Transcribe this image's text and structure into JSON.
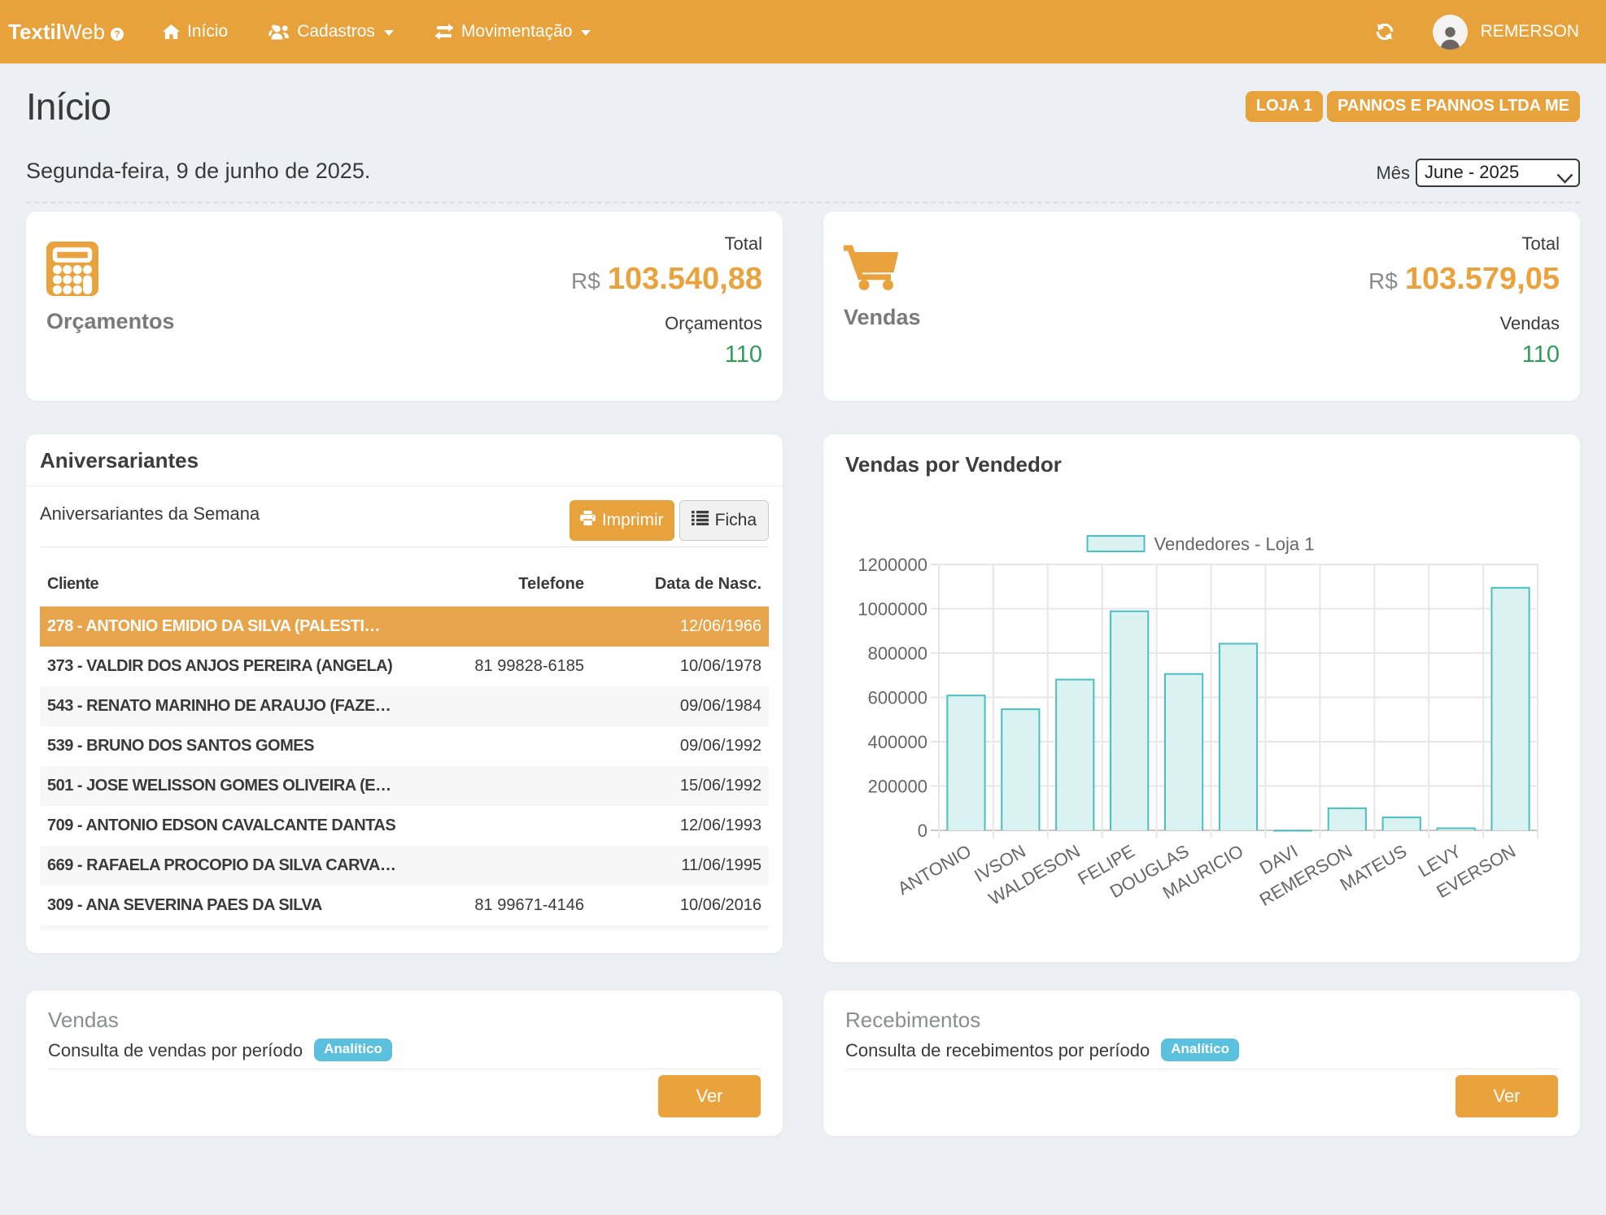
{
  "navbar": {
    "brand_bold": "Textil",
    "brand_light": "Web",
    "items": [
      {
        "label": "Início",
        "icon": "home-icon",
        "has_caret": false
      },
      {
        "label": "Cadastros",
        "icon": "users-icon",
        "has_caret": true
      },
      {
        "label": "Movimentação",
        "icon": "exchange-icon",
        "has_caret": true
      }
    ],
    "user": "REMERSON"
  },
  "header": {
    "title": "Início",
    "store_button": "LOJA 1",
    "company_button": "PANNOS E PANNOS LTDA ME"
  },
  "dateline": {
    "date": "Segunda-feira, 9 de junho de 2025.",
    "month_label": "Mês",
    "month_value": "June - 2025"
  },
  "stats": {
    "orcamentos": {
      "label": "Orçamentos",
      "total_label": "Total",
      "currency": "R$",
      "total": "103.540,88",
      "count_label": "Orçamentos",
      "count": "110"
    },
    "vendas": {
      "label": "Vendas",
      "total_label": "Total",
      "currency": "R$",
      "total": "103.579,05",
      "count_label": "Vendas",
      "count": "110"
    }
  },
  "birthdays": {
    "title": "Aniversariantes",
    "subtitle": "Aniversariantes da Semana",
    "print_button": "Imprimir",
    "ficha_button": "Ficha",
    "columns": {
      "cliente": "Cliente",
      "telefone": "Telefone",
      "nascimento": "Data de Nasc."
    },
    "rows": [
      {
        "cliente": "278 - ANTONIO EMIDIO DA SILVA (PALESTI…",
        "telefone": "",
        "nascimento": "12/06/1966"
      },
      {
        "cliente": "373 - VALDIR DOS ANJOS PEREIRA (ANGELA)",
        "telefone": "81 99828-6185",
        "nascimento": "10/06/1978"
      },
      {
        "cliente": "543 - RENATO MARINHO DE ARAUJO (FAZE…",
        "telefone": "",
        "nascimento": "09/06/1984"
      },
      {
        "cliente": "539 - BRUNO DOS SANTOS GOMES",
        "telefone": "",
        "nascimento": "09/06/1992"
      },
      {
        "cliente": "501 - JOSE WELISSON GOMES OLIVEIRA (E…",
        "telefone": "",
        "nascimento": "15/06/1992"
      },
      {
        "cliente": "709 - ANTONIO EDSON CAVALCANTE DANTAS",
        "telefone": "",
        "nascimento": "12/06/1993"
      },
      {
        "cliente": "669 - RAFAELA PROCOPIO DA SILVA CARVA…",
        "telefone": "",
        "nascimento": "11/06/1995"
      },
      {
        "cliente": "309 - ANA SEVERINA PAES DA SILVA",
        "telefone": "81 99671-4146",
        "nascimento": "10/06/2016"
      }
    ]
  },
  "chart_card": {
    "title": "Vendas por Vendedor"
  },
  "chart_data": {
    "type": "bar",
    "title": "",
    "legend": "Vendedores - Loja 1",
    "categories": [
      "ANTONIO",
      "IVSON",
      "WALDESON",
      "FELIPE",
      "DOUGLAS",
      "MAURICIO",
      "DAVI",
      "REMERSON",
      "MATEUS",
      "LEVY",
      "EVERSON"
    ],
    "values": [
      612000,
      550000,
      684000,
      992000,
      709000,
      846000,
      2000,
      103000,
      62000,
      13000,
      1098000
    ],
    "xlabel": "",
    "ylabel": "",
    "ylim": [
      0,
      1200000
    ],
    "ytick_step": 200000,
    "legend_position": "top",
    "grid": true,
    "bar_fill": "#DBF2F2",
    "bar_border": "#4BC0C0",
    "axis_text_color": "#666666"
  },
  "vendas_card": {
    "title": "Vendas",
    "description": "Consulta de vendas por período",
    "badge": "Analítico",
    "button": "Ver"
  },
  "recebimentos_card": {
    "title": "Recebimentos",
    "description": "Consulta de recebimentos por período",
    "badge": "Analítico",
    "button": "Ver"
  },
  "colors": {
    "accent_orange": "#E8A23C",
    "highlight_row": "#E7A44A",
    "badge_blue": "#5BC0DE",
    "count_green": "#2E9E57",
    "background": "#ECEFF3"
  }
}
